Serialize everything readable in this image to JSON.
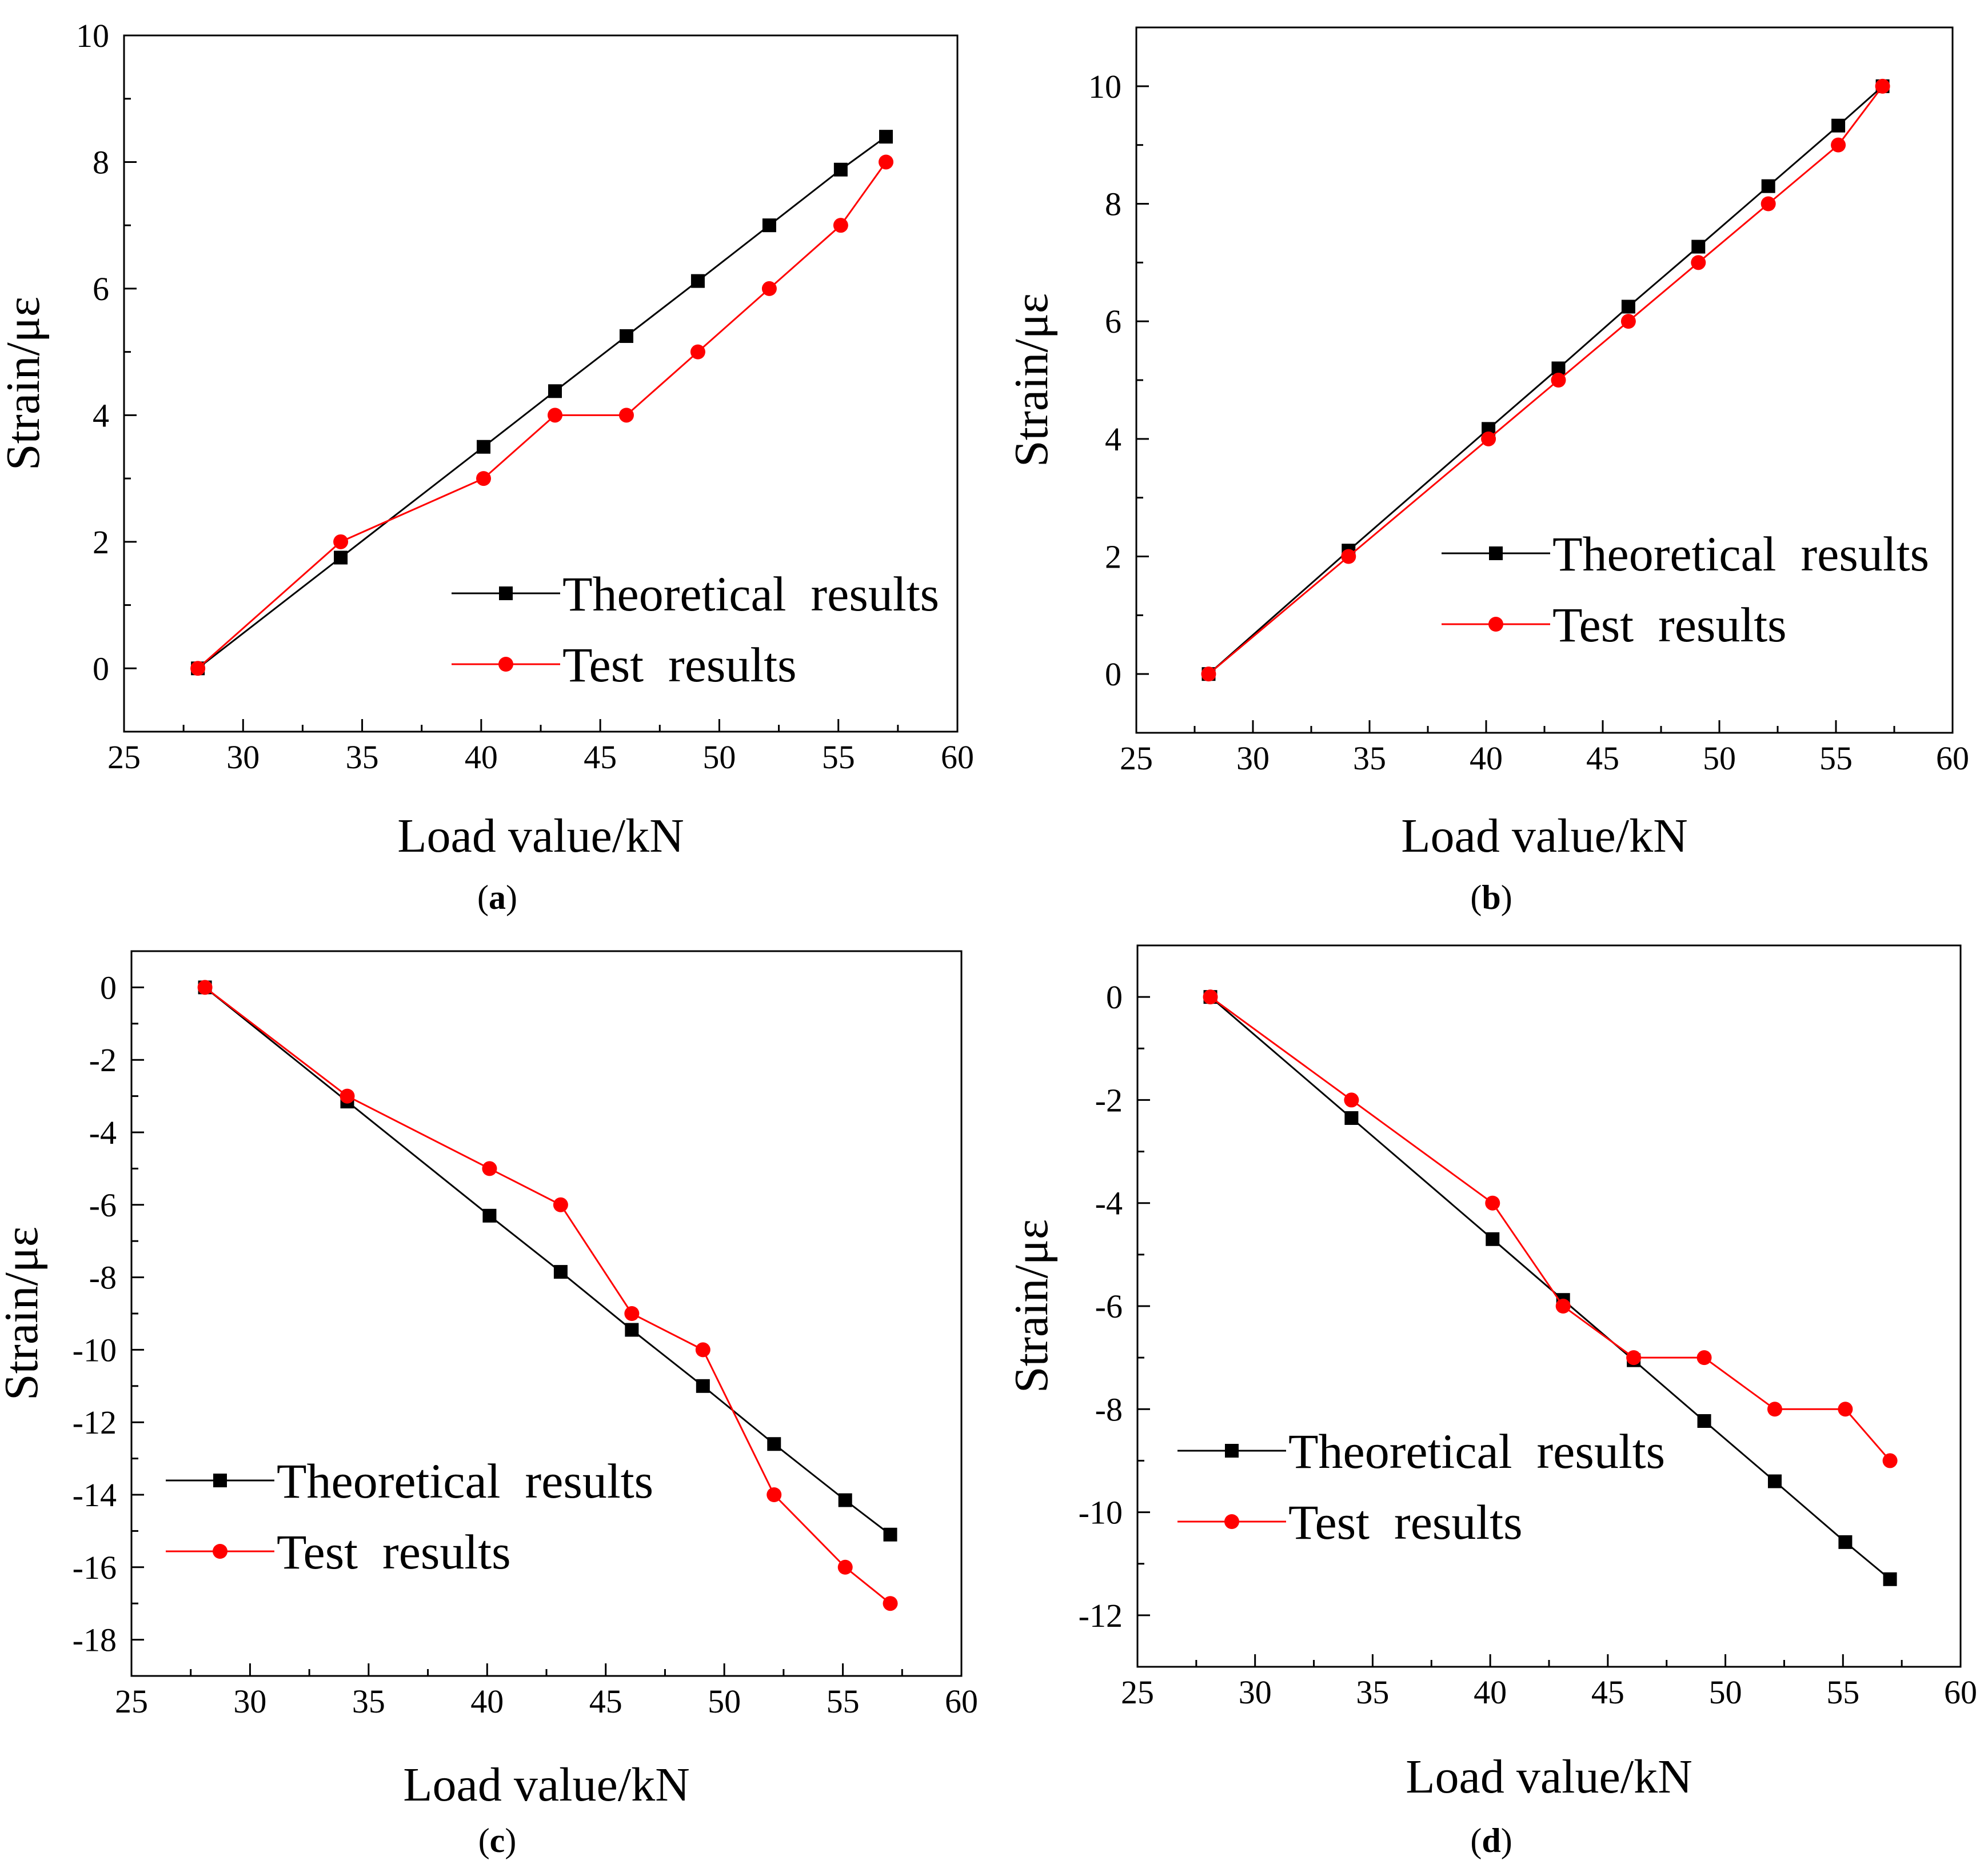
{
  "chart_data": [
    {
      "id": "a",
      "type": "line",
      "label_open": "(",
      "label_letter": "a",
      "label_close": ")",
      "xlabel": "Load value/kN",
      "ylabel": "Strain/με",
      "xlim": [
        25,
        60
      ],
      "ylim": [
        -1,
        10
      ],
      "xticks": [
        25,
        30,
        35,
        40,
        45,
        50,
        55,
        60
      ],
      "xtick_labels": [
        "25",
        "30",
        "35",
        "40",
        "45",
        "50",
        "55",
        "60"
      ],
      "yticks": [
        0,
        2,
        4,
        6,
        8,
        10
      ],
      "ytick_labels": [
        "0",
        "2",
        "4",
        "6",
        "8",
        "10"
      ],
      "legend_position": "lower-right",
      "series": [
        {
          "name": "Theoretical  results",
          "color": "#000000",
          "marker": "square",
          "x": [
            28.1,
            34.1,
            40.1,
            43.1,
            46.1,
            49.1,
            52.1,
            55.1,
            57.0
          ],
          "y": [
            0,
            1.75,
            3.5,
            4.38,
            5.25,
            6.12,
            7.0,
            7.88,
            8.4
          ]
        },
        {
          "name": "Test  results",
          "color": "#ff0000",
          "marker": "circle",
          "x": [
            28.1,
            34.1,
            40.1,
            43.1,
            46.1,
            49.1,
            52.1,
            55.1,
            57.0
          ],
          "y": [
            0,
            2,
            3,
            4,
            4,
            5,
            6,
            7,
            8
          ]
        }
      ]
    },
    {
      "id": "b",
      "type": "line",
      "label_open": "(",
      "label_letter": "b",
      "label_close": ")",
      "xlabel": "Load value/kN",
      "ylabel": "Strain/με",
      "xlim": [
        25,
        60
      ],
      "ylim": [
        -1,
        11
      ],
      "xticks": [
        25,
        30,
        35,
        40,
        45,
        50,
        55,
        60
      ],
      "xtick_labels": [
        "25",
        "30",
        "35",
        "40",
        "45",
        "50",
        "55",
        "60"
      ],
      "yticks": [
        0,
        2,
        4,
        6,
        8,
        10
      ],
      "ytick_labels": [
        "0",
        "2",
        "4",
        "6",
        "8",
        "10"
      ],
      "legend_position": "middle-right",
      "series": [
        {
          "name": "Theoretical  results",
          "color": "#000000",
          "marker": "square",
          "x": [
            28.1,
            34.1,
            40.1,
            43.1,
            46.1,
            49.1,
            52.1,
            55.1,
            57.0
          ],
          "y": [
            0,
            2.1,
            4.17,
            5.2,
            6.25,
            7.27,
            8.3,
            9.33,
            10.0
          ]
        },
        {
          "name": "Test  results",
          "color": "#ff0000",
          "marker": "circle",
          "x": [
            28.1,
            34.1,
            40.1,
            43.1,
            46.1,
            49.1,
            52.1,
            55.1,
            57.0
          ],
          "y": [
            0,
            2,
            4,
            5,
            6,
            7,
            8,
            9,
            10
          ]
        }
      ]
    },
    {
      "id": "c",
      "type": "line",
      "label_open": "(",
      "label_letter": "c",
      "label_close": ")",
      "xlabel": "Load value/kN",
      "ylabel": "Strain/με",
      "xlim": [
        25,
        60
      ],
      "ylim": [
        -19,
        1
      ],
      "xticks": [
        25,
        30,
        35,
        40,
        45,
        50,
        55,
        60
      ],
      "xtick_labels": [
        "25",
        "30",
        "35",
        "40",
        "45",
        "50",
        "55",
        "60"
      ],
      "yticks": [
        0,
        -2,
        -4,
        -6,
        -8,
        -10,
        -12,
        -14,
        -16,
        -18
      ],
      "ytick_labels": [
        "0",
        "-2",
        "-4",
        "-6",
        "-8",
        "-10",
        "-12",
        "-14",
        "-16",
        "-18"
      ],
      "legend_position": "lower-left",
      "series": [
        {
          "name": "Theoretical  results",
          "color": "#000000",
          "marker": "square",
          "x": [
            28.1,
            34.1,
            40.1,
            43.1,
            46.1,
            49.1,
            52.1,
            55.1,
            57.0
          ],
          "y": [
            0,
            -3.15,
            -6.3,
            -7.85,
            -9.45,
            -11.0,
            -12.6,
            -14.15,
            -15.1
          ]
        },
        {
          "name": "Test  results",
          "color": "#ff0000",
          "marker": "circle",
          "x": [
            28.1,
            34.1,
            40.1,
            43.1,
            46.1,
            49.1,
            52.1,
            55.1,
            57.0
          ],
          "y": [
            0,
            -3,
            -5,
            -6,
            -9,
            -10,
            -14,
            -16,
            -17
          ]
        }
      ]
    },
    {
      "id": "d",
      "type": "line",
      "label_open": "(",
      "label_letter": "d",
      "label_close": ")",
      "xlabel": "Load value/kN",
      "ylabel": "Strain/με",
      "xlim": [
        25,
        60
      ],
      "ylim": [
        -13,
        1
      ],
      "xticks": [
        25,
        30,
        35,
        40,
        45,
        50,
        55,
        60
      ],
      "xtick_labels": [
        "25",
        "30",
        "35",
        "40",
        "45",
        "50",
        "55",
        "60"
      ],
      "yticks": [
        0,
        -2,
        -4,
        -6,
        -8,
        -10,
        -12
      ],
      "ytick_labels": [
        "0",
        "-2",
        "-4",
        "-6",
        "-8",
        "-10",
        "-12"
      ],
      "legend_position": "lower-left",
      "series": [
        {
          "name": "Theoretical  results",
          "color": "#000000",
          "marker": "square",
          "x": [
            28.1,
            34.1,
            40.1,
            43.1,
            46.1,
            49.1,
            52.1,
            55.1,
            57.0
          ],
          "y": [
            0,
            -2.35,
            -4.7,
            -5.88,
            -7.05,
            -8.23,
            -9.4,
            -10.58,
            -11.3
          ]
        },
        {
          "name": "Test  results",
          "color": "#ff0000",
          "marker": "circle",
          "x": [
            28.1,
            34.1,
            40.1,
            43.1,
            46.1,
            49.1,
            52.1,
            55.1,
            57.0
          ],
          "y": [
            0,
            -2,
            -4,
            -6,
            -7,
            -7,
            -8,
            -8,
            -9
          ]
        }
      ]
    }
  ]
}
